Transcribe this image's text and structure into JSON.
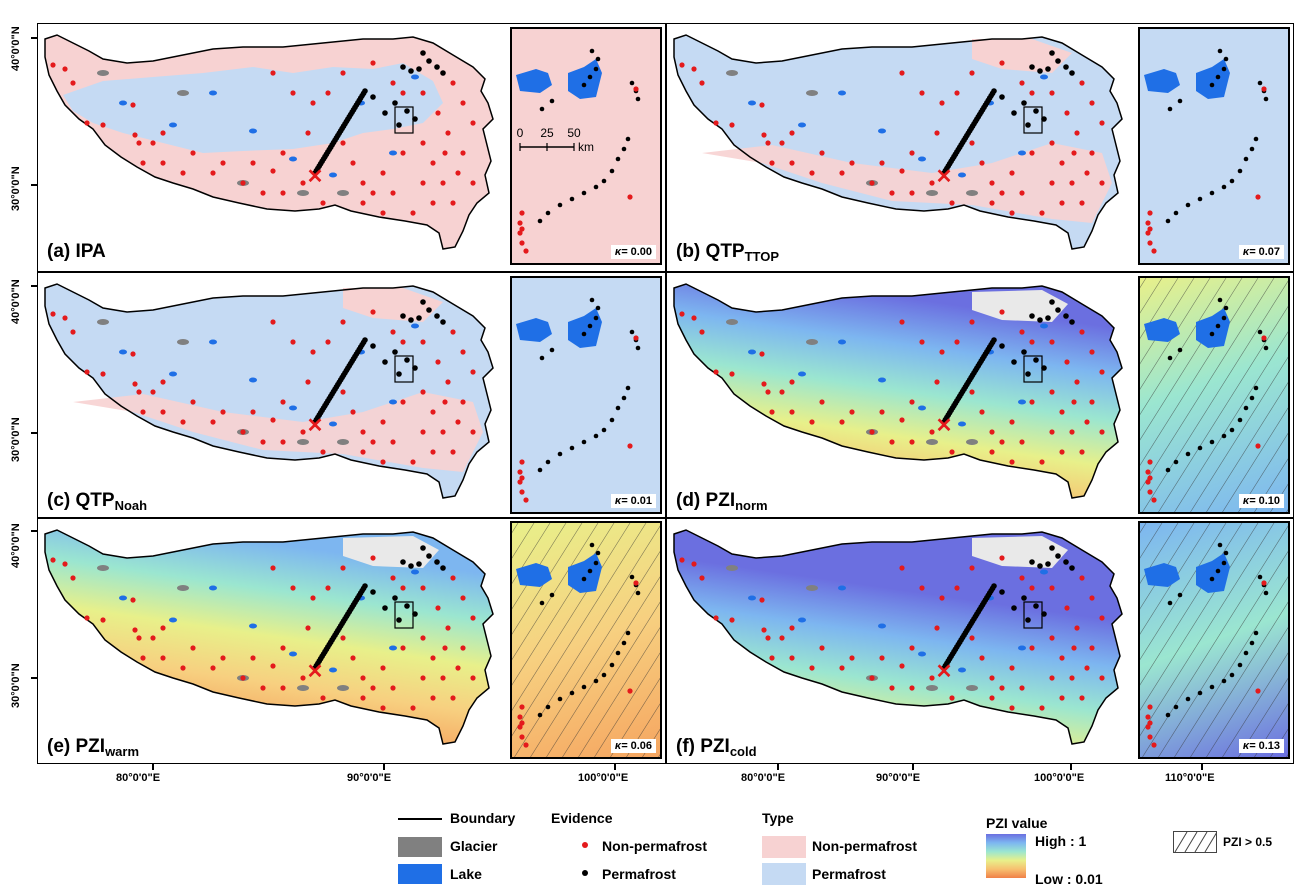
{
  "axes": {
    "y_labels": [
      "40°0'0\"N",
      "30°0'0\"N"
    ],
    "x_labels": [
      "80°0'0\"E",
      "90°0'0\"E",
      "100°0'0\"E",
      "110°0'0\"E"
    ]
  },
  "panels": [
    {
      "id": "a",
      "label_main": "(a) IPA",
      "label_sub": "",
      "style": "type",
      "base": "nonpf",
      "kappa": "0.00"
    },
    {
      "id": "b",
      "label_main": "(b) QTP",
      "label_sub": "TTOP",
      "style": "type",
      "base": "pf",
      "kappa": "0.07"
    },
    {
      "id": "c",
      "label_main": "(c) QTP",
      "label_sub": "Noah",
      "style": "type",
      "base": "pf",
      "kappa": "0.01"
    },
    {
      "id": "d",
      "label_main": "(d) PZI",
      "label_sub": "norm",
      "style": "pzi",
      "base": "norm",
      "kappa": "0.10"
    },
    {
      "id": "e",
      "label_main": "(e) PZI",
      "label_sub": "warm",
      "style": "pzi",
      "base": "warm",
      "kappa": "0.06"
    },
    {
      "id": "f",
      "label_main": "(f) PZI",
      "label_sub": "cold",
      "style": "pzi",
      "base": "cold",
      "kappa": "0.13"
    }
  ],
  "kappa_symbol": "κ=",
  "scale_bar": {
    "ticks": [
      "0",
      "25",
      "50"
    ],
    "unit": "km"
  },
  "legend": {
    "boundary": "Boundary",
    "glacier": "Glacier",
    "lake": "Lake",
    "evidence_title": "Evidence",
    "evidence_nonpf": "Non-permafrost",
    "evidence_pf": "Permafrost",
    "type_title": "Type",
    "type_nonpf": "Non-permafrost",
    "type_pf": "Permafrost",
    "pzi_title": "PZI value",
    "pzi_high": "High : 1",
    "pzi_low": "Low : 0.01",
    "hatch_label": "PZI > 0.5"
  },
  "colors": {
    "nonpf": "#f7d2d2",
    "pf": "#c5daf3",
    "lake": "#1f6fe6",
    "glacier": "#808080",
    "evidence_nonpf": "#e41a1c",
    "evidence_pf": "#000000",
    "pzi_high": "#6b6fe0",
    "pzi_low": "#f08048"
  }
}
